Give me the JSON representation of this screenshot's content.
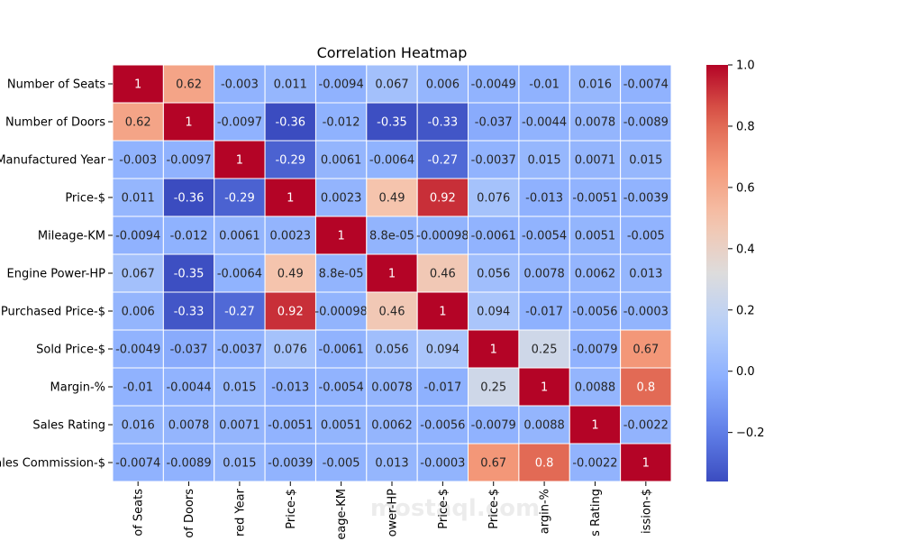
{
  "chart_data": {
    "type": "heatmap",
    "title": "Correlation Heatmap",
    "labels": [
      "Number of Seats",
      "Number of Doors",
      "Manufactured Year",
      "Price-$",
      "Mileage-KM",
      "Engine Power-HP",
      "Purchased Price-$",
      "Sold Price-$",
      "Margin-%",
      "Sales Rating",
      "Sales Commission-$"
    ],
    "values": [
      [
        "1",
        "0.62",
        "-0.003",
        "0.011",
        "-0.0094",
        "0.067",
        "0.006",
        "-0.0049",
        "-0.01",
        "0.016",
        "-0.0074"
      ],
      [
        "0.62",
        "1",
        "-0.0097",
        "-0.36",
        "-0.012",
        "-0.35",
        "-0.33",
        "-0.037",
        "-0.0044",
        "0.0078",
        "-0.0089"
      ],
      [
        "-0.003",
        "-0.0097",
        "1",
        "-0.29",
        "0.0061",
        "-0.0064",
        "-0.27",
        "-0.0037",
        "0.015",
        "0.0071",
        "0.015"
      ],
      [
        "0.011",
        "-0.36",
        "-0.29",
        "1",
        "0.0023",
        "0.49",
        "0.92",
        "0.076",
        "-0.013",
        "-0.0051",
        "-0.0039"
      ],
      [
        "-0.0094",
        "-0.012",
        "0.0061",
        "0.0023",
        "1",
        "8.8e-05",
        "-0.00098",
        "-0.0061",
        "-0.0054",
        "0.0051",
        "-0.005"
      ],
      [
        "0.067",
        "-0.35",
        "-0.0064",
        "0.49",
        "8.8e-05",
        "1",
        "0.46",
        "0.056",
        "0.0078",
        "0.0062",
        "0.013"
      ],
      [
        "0.006",
        "-0.33",
        "-0.27",
        "0.92",
        "-0.00098",
        "0.46",
        "1",
        "0.094",
        "-0.017",
        "-0.0056",
        "-0.0003"
      ],
      [
        "-0.0049",
        "-0.037",
        "-0.0037",
        "0.076",
        "-0.0061",
        "0.056",
        "0.094",
        "1",
        "0.25",
        "-0.0079",
        "0.67"
      ],
      [
        "-0.01",
        "-0.0044",
        "0.015",
        "-0.013",
        "-0.0054",
        "0.0078",
        "-0.017",
        "0.25",
        "1",
        "0.0088",
        "0.8"
      ],
      [
        "0.016",
        "0.0078",
        "0.0071",
        "-0.0051",
        "0.0051",
        "0.0062",
        "-0.0056",
        "-0.0079",
        "0.0088",
        "1",
        "-0.0022"
      ],
      [
        "-0.0074",
        "-0.0089",
        "0.015",
        "-0.0039",
        "-0.005",
        "0.013",
        "-0.0003",
        "0.67",
        "0.8",
        "-0.0022",
        "1"
      ]
    ],
    "colormap": "coolwarm",
    "vmin": -0.36,
    "vmax": 1.0,
    "colorbar_ticks": [
      "1.0",
      "0.8",
      "0.6",
      "0.4",
      "0.2",
      "0.0",
      "−0.2"
    ],
    "colorbar_tick_values": [
      1.0,
      0.8,
      0.6,
      0.4,
      0.2,
      0.0,
      -0.2
    ],
    "annotations": true,
    "watermark": "mostaql.com"
  }
}
